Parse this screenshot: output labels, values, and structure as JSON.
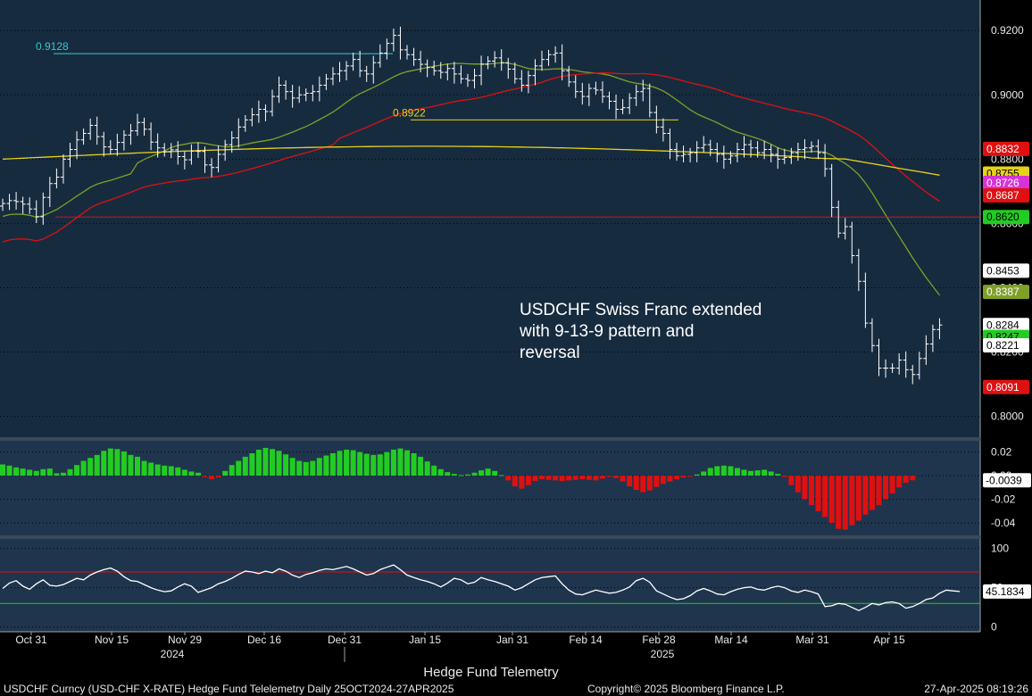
{
  "chart_data": [
    {
      "panel": "price",
      "type": "candlestick",
      "ylim": [
        0.7935,
        0.9295
      ],
      "y_ticks": [
        "0.9200",
        "0.9000",
        "0.8800",
        "0.8600",
        "0.8400",
        "0.8200",
        "0.8000"
      ],
      "annotation": [
        "USDCHF Swiss Franc extended",
        "with 9-13-9 pattern and",
        "reversal"
      ],
      "price_labels": [
        {
          "value": "0.8832",
          "color": "#e01010"
        },
        {
          "value": "0.8755",
          "color": "#e6d219"
        },
        {
          "value": "0.8726",
          "color": "#d633d6"
        },
        {
          "value": "0.8687",
          "color": "#e01010"
        },
        {
          "value": "0.8620",
          "color": "#22cc22"
        },
        {
          "value": "0.8453",
          "color": "#ffffff"
        },
        {
          "value": "0.8387",
          "color": "#7fa028"
        },
        {
          "value": "0.8284",
          "color": "#ffffff"
        },
        {
          "value": "0.8247",
          "color": "#22cc22"
        },
        {
          "value": "0.8221",
          "color": "#ffffff"
        },
        {
          "value": "0.8091",
          "color": "#e01010"
        }
      ],
      "levels": [
        {
          "label": "0.9128",
          "value": 0.9128
        },
        {
          "label": "0.8922",
          "value": 0.8922
        }
      ],
      "close_series": [
        0.8662,
        0.8671,
        0.8668,
        0.866,
        0.8645,
        0.8621,
        0.8681,
        0.8724,
        0.8744,
        0.88,
        0.883,
        0.886,
        0.888,
        0.8905,
        0.887,
        0.8838,
        0.883,
        0.8852,
        0.8875,
        0.8888,
        0.8914,
        0.8893,
        0.8853,
        0.8835,
        0.8823,
        0.8829,
        0.8808,
        0.8798,
        0.8825,
        0.8824,
        0.8782,
        0.8774,
        0.8815,
        0.8845,
        0.8866,
        0.89,
        0.8922,
        0.8938,
        0.8955,
        0.8948,
        0.8995,
        0.903,
        0.901,
        0.899,
        0.9,
        0.9005,
        0.901,
        0.903,
        0.905,
        0.9065,
        0.9075,
        0.909,
        0.911,
        0.9075,
        0.9065,
        0.91,
        0.913,
        0.916,
        0.9185,
        0.914,
        0.9125,
        0.911,
        0.9095,
        0.9085,
        0.9075,
        0.907,
        0.9082,
        0.9065,
        0.905,
        0.9045,
        0.906,
        0.9095,
        0.9105,
        0.9115,
        0.91,
        0.908,
        0.905,
        0.903,
        0.906,
        0.909,
        0.911,
        0.9125,
        0.913,
        0.9075,
        0.904,
        0.901,
        0.8995,
        0.902,
        0.9015,
        0.8995,
        0.898,
        0.8955,
        0.896,
        0.899,
        0.901,
        0.902,
        0.8945,
        0.89,
        0.888,
        0.883,
        0.881,
        0.8815,
        0.882,
        0.8835,
        0.8845,
        0.883,
        0.8815,
        0.88,
        0.881,
        0.883,
        0.8845,
        0.8835,
        0.882,
        0.883,
        0.8815,
        0.88,
        0.8805,
        0.882,
        0.883,
        0.8835,
        0.884,
        0.882,
        0.877,
        0.865,
        0.857,
        0.859,
        0.85,
        0.842,
        0.829,
        0.822,
        0.815,
        0.815,
        0.815,
        0.8175,
        0.8145,
        0.813,
        0.818,
        0.8225,
        0.827,
        0.8284
      ]
    },
    {
      "panel": "oscillator",
      "type": "bar",
      "ylim": [
        -0.0505,
        0.0295
      ],
      "y_ticks": [
        "0.02",
        "0.00",
        "-0.02",
        "-0.04"
      ],
      "current_label": "-0.0039",
      "values": [
        0.0095,
        0.0085,
        0.007,
        0.006,
        0.005,
        0.004,
        0.0055,
        0.006,
        0.002,
        0.0025,
        0.0055,
        0.009,
        0.0125,
        0.015,
        0.0175,
        0.021,
        0.023,
        0.0225,
        0.0205,
        0.0175,
        0.016,
        0.0125,
        0.011,
        0.0095,
        0.0085,
        0.008,
        0.007,
        0.005,
        0.0035,
        0.0025,
        -0.001,
        -0.003,
        -0.0015,
        0.004,
        0.009,
        0.0125,
        0.016,
        0.019,
        0.022,
        0.0235,
        0.0225,
        0.021,
        0.018,
        0.015,
        0.0125,
        0.0115,
        0.0125,
        0.015,
        0.017,
        0.019,
        0.021,
        0.022,
        0.0215,
        0.02,
        0.0185,
        0.0175,
        0.018,
        0.02,
        0.022,
        0.023,
        0.0215,
        0.019,
        0.016,
        0.012,
        0.0085,
        0.0055,
        0.003,
        0.0015,
        0.0005,
        0.001,
        0.0025,
        0.0045,
        0.006,
        0.004,
        0.0005,
        -0.004,
        -0.009,
        -0.011,
        -0.008,
        -0.0045,
        -0.003,
        -0.0035,
        -0.004,
        -0.0045,
        -0.004,
        -0.0035,
        -0.003,
        -0.0035,
        -0.004,
        -0.0025,
        -0.001,
        -0.002,
        -0.005,
        -0.009,
        -0.012,
        -0.014,
        -0.0125,
        -0.0095,
        -0.007,
        -0.005,
        -0.003,
        -0.0015,
        -0.0005,
        0.001,
        0.0035,
        0.0065,
        0.008,
        0.0085,
        0.008,
        0.0065,
        0.005,
        0.004,
        0.0045,
        0.005,
        0.0035,
        0.0015,
        -0.001,
        -0.008,
        -0.014,
        -0.02,
        -0.025,
        -0.03,
        -0.035,
        -0.04,
        -0.045,
        -0.0455,
        -0.042,
        -0.038,
        -0.033,
        -0.029,
        -0.025,
        -0.02,
        -0.015,
        -0.01,
        -0.006,
        -0.0039
      ]
    },
    {
      "panel": "rsi",
      "type": "line",
      "ylim": [
        -6,
        112
      ],
      "y_ticks": [
        "100",
        "50",
        "0"
      ],
      "overbought": 70,
      "oversold": 30,
      "current_label": "45.1834",
      "values": [
        49,
        56,
        59,
        52,
        48,
        55,
        60,
        53,
        52,
        54,
        58,
        62,
        60,
        66,
        70,
        73,
        75,
        71,
        64,
        59,
        58,
        54,
        50,
        47,
        45,
        46,
        51,
        55,
        52,
        44,
        47,
        50,
        55,
        58,
        62,
        67,
        71,
        70,
        68,
        71,
        69,
        74,
        71,
        66,
        63,
        67,
        69,
        72,
        74,
        73,
        75,
        77,
        74,
        70,
        66,
        68,
        73,
        76,
        79,
        73,
        66,
        63,
        60,
        58,
        55,
        51,
        56,
        62,
        60,
        55,
        57,
        63,
        60,
        58,
        55,
        52,
        47,
        50,
        55,
        60,
        63,
        64,
        65,
        55,
        47,
        42,
        41,
        44,
        47,
        45,
        43,
        44,
        47,
        51,
        59,
        62,
        57,
        46,
        42,
        38,
        35,
        36,
        40,
        46,
        49,
        46,
        42,
        41,
        45,
        48,
        50,
        51,
        48,
        47,
        50,
        52,
        50,
        46,
        44,
        47,
        45,
        42,
        26,
        27,
        30,
        29,
        25,
        21,
        25,
        30,
        28,
        31,
        32,
        30,
        24,
        26,
        30,
        35,
        37,
        43,
        47,
        46,
        45.18
      ]
    },
    {
      "panel": "x-axis",
      "type": "axis",
      "x_ticks": [
        "Oct 31",
        "Nov 15",
        "Nov 29",
        "Dec 16",
        "Dec 31",
        "Jan 15",
        "Jan 31",
        "Feb 14",
        "Feb 28",
        "Mar 14",
        "Mar 31",
        "Apr 15"
      ],
      "x_years": [
        "2024",
        "2025"
      ]
    }
  ],
  "legend_title": "Hedge Fund Telemetry",
  "footer": {
    "left": "USDCHF Curncy (USD-CHF X-RATE) Hedge Fund Telelemetry  Daily 25OCT2024-27APR2025",
    "center": "Copyright© 2025 Bloomberg Finance L.P.",
    "right": "27-Apr-2025 08:19:26"
  },
  "colors": {
    "price_bg": "#172b3f",
    "panel_bg": "#1f354d",
    "candle": "#ffffff",
    "ma_fast": "#7fa028",
    "ma_slow": "#e01010",
    "ma_flat": "#e6d219",
    "positive_bar": "#22cc22",
    "negative_bar": "#e01010",
    "rsi_line": "#ffffff",
    "rsi_over": "#e01010",
    "rsi_under": "#22cc22"
  }
}
